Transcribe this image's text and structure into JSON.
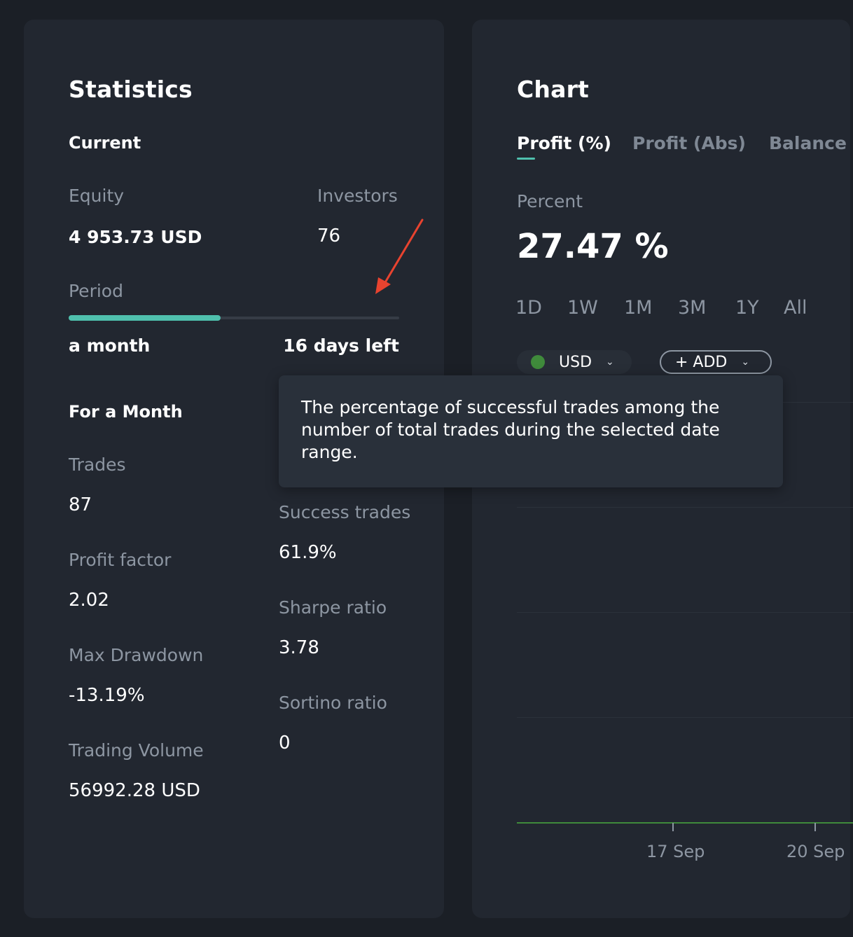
{
  "statistics": {
    "title": "Statistics",
    "current": {
      "heading": "Current",
      "equity_label": "Equity",
      "equity_value": "4 953.73 USD",
      "investors_label": "Investors",
      "investors_value": "76",
      "period_label": "Period",
      "period_progress": 0.46,
      "period_start": "a month",
      "period_remaining": "16 days left"
    },
    "month": {
      "heading": "For a Month",
      "trades_label": "Trades",
      "trades_value": "87",
      "success_label": "Success trades",
      "success_value": "61.9%",
      "profit_factor_label": "Profit factor",
      "profit_factor_value": "2.02",
      "sharpe_label": "Sharpe ratio",
      "sharpe_value": "3.78",
      "drawdown_label": "Max Drawdown",
      "drawdown_value": "-13.19%",
      "sortino_label": "Sortino ratio",
      "sortino_value": "0",
      "volume_label": "Trading Volume",
      "volume_value": "56992.28 USD"
    }
  },
  "chart": {
    "title": "Chart",
    "tabs": [
      {
        "label": "Profit (%)",
        "active": true
      },
      {
        "label": "Profit (Abs)",
        "active": false
      },
      {
        "label": "Balance",
        "active": false
      }
    ],
    "metric_label": "Percent",
    "metric_value": "27.47 %",
    "ranges": [
      "1D",
      "1W",
      "1M",
      "3M",
      "1Y",
      "All"
    ],
    "currency_pill": "USD",
    "currency_dot_color": "#3f8a3b",
    "add_pill": "+ ADD",
    "x_labels": [
      "17 Sep",
      "20 Sep"
    ]
  },
  "tooltip": {
    "text": "The percentage of successful trades among the number of total trades during the selected date range."
  },
  "colors": {
    "accent": "#4fc0ad",
    "arrow": "#e8432f",
    "line": "#3f8a3b"
  }
}
